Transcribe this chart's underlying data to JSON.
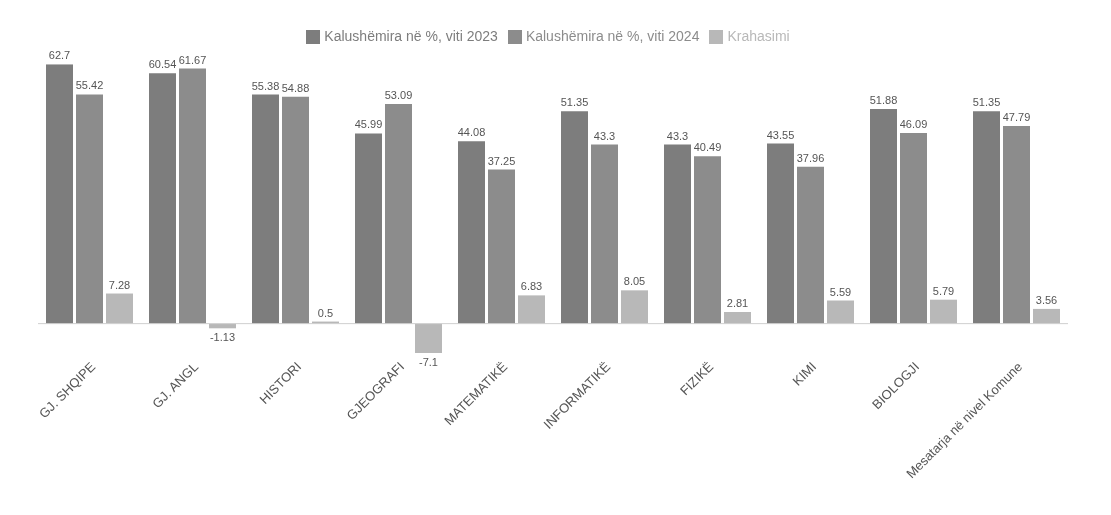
{
  "chart_data": {
    "type": "bar",
    "categories": [
      "GJ. SHQIPE",
      "GJ. ANGL",
      "HISTORI",
      "GJEOGRAFI",
      "MATEMATIKË",
      "INFORMATIKË",
      "FIZIKË",
      "KIMI",
      "BIOLOGJI",
      "Mesatarja në nivel Komune"
    ],
    "series": [
      {
        "name": "Kalushëmira në %, viti 2023",
        "color": "#7d7d7d",
        "values": [
          62.7,
          60.54,
          55.38,
          45.99,
          44.08,
          51.35,
          43.3,
          43.55,
          51.88,
          51.35
        ]
      },
      {
        "name": "Kalushëmira në %, viti 2024",
        "color": "#8c8c8c",
        "values": [
          55.42,
          61.67,
          54.88,
          53.09,
          37.25,
          43.3,
          40.49,
          37.96,
          46.09,
          47.79
        ]
      },
      {
        "name": "Krahasimi",
        "color": "#b8b8b8",
        "values": [
          7.28,
          -1.13,
          0.5,
          -7.1,
          6.83,
          8.05,
          2.81,
          5.59,
          5.79,
          3.56
        ]
      }
    ],
    "data_labels": true,
    "legend": "top"
  }
}
